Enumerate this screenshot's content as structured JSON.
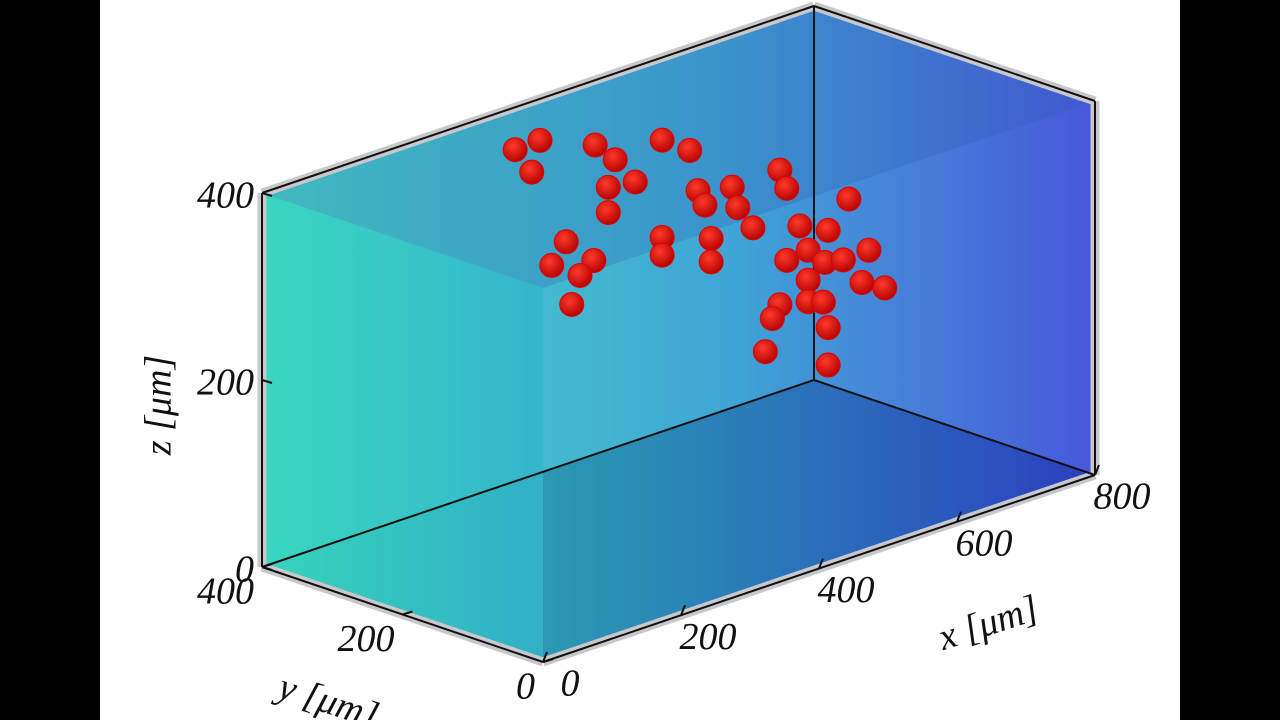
{
  "chart_data": {
    "type": "scatter3d",
    "xlabel": "x [μm]",
    "ylabel": "y [μm]",
    "zlabel": "z [μm]",
    "xlim": [
      0,
      800
    ],
    "ylim": [
      0,
      400
    ],
    "zlim": [
      0,
      400
    ],
    "xticks": [
      0,
      200,
      400,
      600,
      800
    ],
    "yticks": [
      0,
      200,
      400
    ],
    "zticks": [
      0,
      200,
      400
    ],
    "color": "#e00000",
    "x": [
      316,
      352,
      340,
      432,
      461,
      529,
      569,
      451,
      490,
      451,
      581,
      591,
      427,
      435,
      457,
      496,
      506,
      596,
      390,
      369,
      430,
      410,
      398,
      529,
      529,
      600,
      600,
      525,
      566,
      506,
      537,
      561,
      588,
      625,
      615,
      648,
      537,
      496,
      485,
      537,
      559,
      566,
      475,
      566
    ],
    "y": [
      350,
      350,
      350,
      350,
      350,
      350,
      350,
      350,
      350,
      350,
      350,
      350,
      150,
      150,
      150,
      150,
      150,
      150,
      350,
      350,
      350,
      350,
      350,
      350,
      350,
      350,
      350,
      150,
      150,
      150,
      150,
      150,
      150,
      150,
      150,
      150,
      150,
      150,
      150,
      150,
      150,
      150,
      150,
      150
    ],
    "z": [
      380,
      381,
      350,
      356,
      333,
      337,
      316,
      306,
      302,
      279,
      270,
      252,
      363,
      339,
      312,
      364,
      342,
      308,
      263,
      243,
      233,
      222,
      194,
      233,
      214,
      214,
      189,
      297,
      282,
      265,
      268,
      249,
      245,
      246,
      214,
      200,
      236,
      220,
      208,
      213,
      207,
      178,
      175,
      138
    ]
  }
}
